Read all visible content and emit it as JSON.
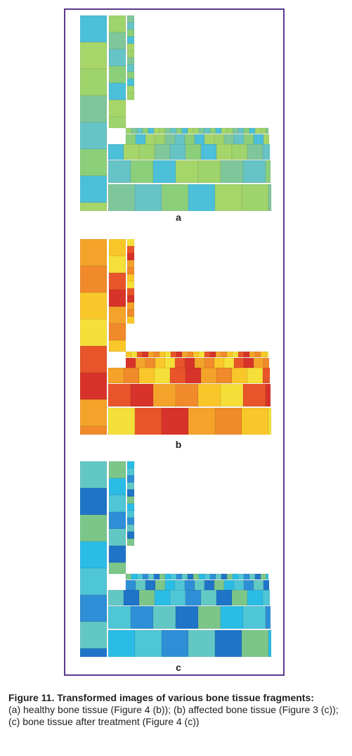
{
  "figure": {
    "panels": [
      {
        "label": "a",
        "palette": [
          "#7fc79a",
          "#66c4c6",
          "#8ccf7a",
          "#4cc0d8",
          "#a6d56a",
          "#9fd36c"
        ]
      },
      {
        "label": "b",
        "palette": [
          "#f4a32a",
          "#f08a2b",
          "#fac72a",
          "#f5e03a",
          "#e8552a",
          "#d7332a"
        ]
      },
      {
        "label": "c",
        "palette": [
          "#2bbce6",
          "#4fc6d6",
          "#2f8fd6",
          "#63c8c4",
          "#1f74c8",
          "#7cc68a"
        ]
      }
    ],
    "caption_title": "Figure 11. Transformed images of various bone tissue fragments:",
    "caption_body": "(a) healthy bone tissue (Figure 4 (b)); (b) affected bone tissue (Figure 3 (c)); (c) bone tissue after treatment (Figure 4 (c))"
  }
}
